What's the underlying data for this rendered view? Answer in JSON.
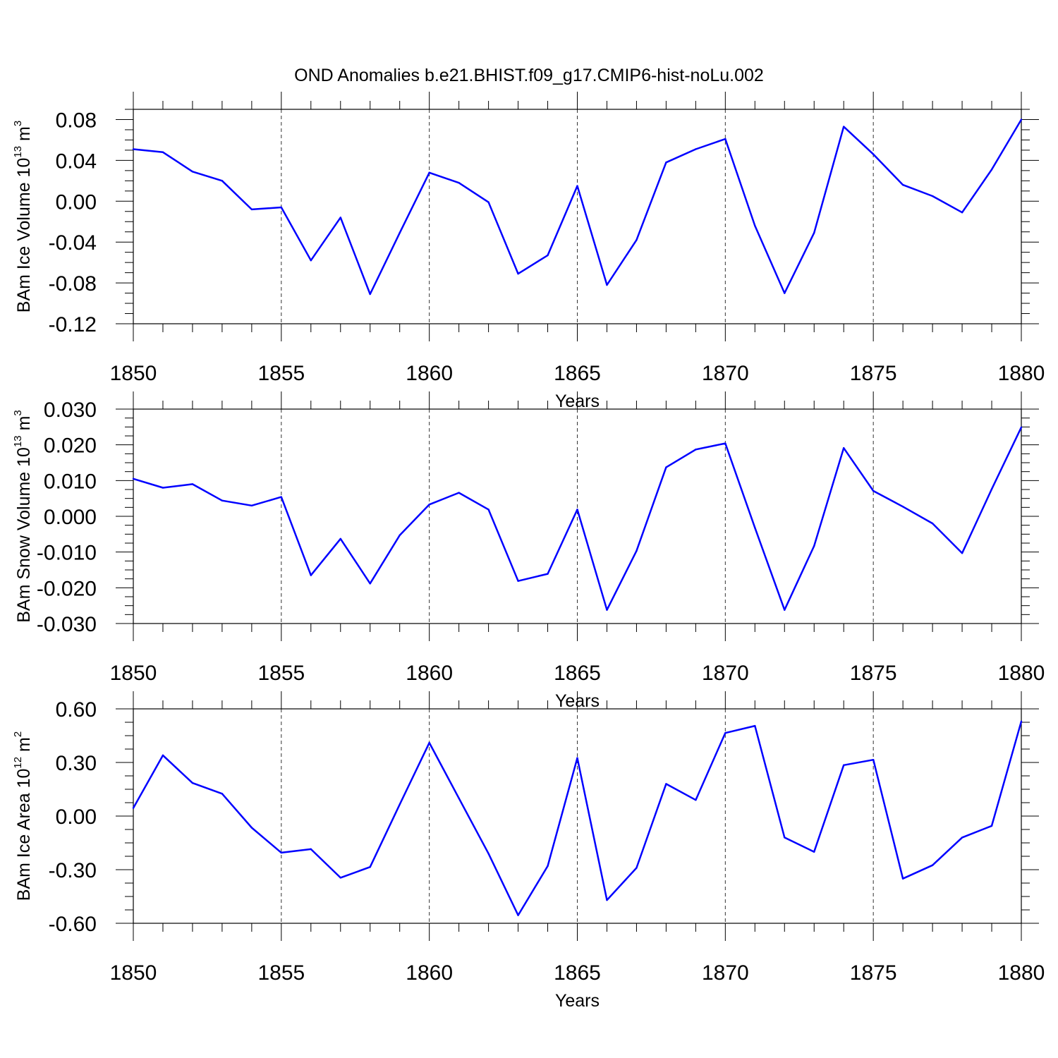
{
  "figure": {
    "title": "OND Anomalies b.e21.BHIST.f09_g17.CMIP6-hist-noLu.002"
  },
  "chart_data": [
    {
      "type": "line",
      "xlabel": "Years",
      "ylabel": {
        "main": "BAm Ice Volume 10",
        "exp": "13",
        "unit": " m",
        "unit_exp": "3"
      },
      "xlim": [
        1850,
        1880
      ],
      "ylim": [
        -0.12,
        0.09
      ],
      "x_ticks": [
        1850,
        1855,
        1860,
        1865,
        1870,
        1875,
        1880
      ],
      "y_ticks": [
        -0.12,
        -0.08,
        -0.04,
        0.0,
        0.04,
        0.08
      ],
      "y_tick_labels": [
        "-0.12",
        "-0.08",
        "-0.04",
        "0.00",
        "0.04",
        "0.08"
      ],
      "grid": "vertical dashed at major x ticks",
      "series": [
        {
          "color": "#0000ff",
          "x": [
            1850,
            1851,
            1852,
            1853,
            1854,
            1855,
            1856,
            1857,
            1858,
            1859,
            1860,
            1861,
            1862,
            1863,
            1864,
            1865,
            1866,
            1867,
            1868,
            1869,
            1870,
            1871,
            1872,
            1873,
            1874,
            1875,
            1876,
            1877,
            1878,
            1879,
            1880
          ],
          "values": [
            0.051,
            0.048,
            0.029,
            0.02,
            -0.008,
            -0.006,
            -0.058,
            -0.016,
            -0.091,
            -0.031,
            0.028,
            0.018,
            -0.001,
            -0.071,
            -0.053,
            0.015,
            -0.082,
            -0.038,
            0.038,
            0.051,
            0.061,
            -0.024,
            -0.09,
            -0.031,
            0.073,
            0.046,
            0.016,
            0.005,
            -0.011,
            0.031,
            0.08
          ]
        }
      ]
    },
    {
      "type": "line",
      "xlabel": "Years",
      "ylabel": {
        "main": "BAm Snow Volume 10",
        "exp": "13",
        "unit": " m",
        "unit_exp": "3"
      },
      "xlim": [
        1850,
        1880
      ],
      "ylim": [
        -0.03,
        0.03
      ],
      "x_ticks": [
        1850,
        1855,
        1860,
        1865,
        1870,
        1875,
        1880
      ],
      "y_ticks": [
        -0.03,
        -0.02,
        -0.01,
        0.0,
        0.01,
        0.02,
        0.03
      ],
      "y_tick_labels": [
        "-0.030",
        "-0.020",
        "-0.010",
        "0.000",
        "0.010",
        "0.020",
        "0.030"
      ],
      "grid": "vertical dashed at major x ticks",
      "series": [
        {
          "color": "#0000ff",
          "x": [
            1850,
            1851,
            1852,
            1853,
            1854,
            1855,
            1856,
            1857,
            1858,
            1859,
            1860,
            1861,
            1862,
            1863,
            1864,
            1865,
            1866,
            1867,
            1868,
            1869,
            1870,
            1871,
            1872,
            1873,
            1874,
            1875,
            1876,
            1877,
            1878,
            1879,
            1880
          ],
          "values": [
            0.0105,
            0.008,
            0.009,
            0.0044,
            0.003,
            0.0054,
            -0.0165,
            -0.0063,
            -0.0188,
            -0.0053,
            0.0033,
            0.0066,
            0.0019,
            -0.0181,
            -0.0161,
            0.0019,
            -0.0262,
            -0.0097,
            0.0137,
            0.0187,
            0.0204,
            -0.0032,
            -0.0262,
            -0.0083,
            0.0191,
            0.0071,
            0.0027,
            -0.002,
            -0.0103,
            0.0076,
            0.0249
          ]
        }
      ]
    },
    {
      "type": "line",
      "xlabel": "Years",
      "ylabel": {
        "main": "BAm Ice Area 10",
        "exp": "12",
        "unit": " m",
        "unit_exp": "2"
      },
      "xlim": [
        1850,
        1880
      ],
      "ylim": [
        -0.6,
        0.6
      ],
      "x_ticks": [
        1850,
        1855,
        1860,
        1865,
        1870,
        1875,
        1880
      ],
      "y_ticks": [
        -0.6,
        -0.3,
        0.0,
        0.3,
        0.6
      ],
      "y_tick_labels": [
        "-0.60",
        "-0.30",
        "0.00",
        "0.30",
        "0.60"
      ],
      "grid": "vertical dashed at major x ticks",
      "series": [
        {
          "color": "#0000ff",
          "x": [
            1850,
            1851,
            1852,
            1853,
            1854,
            1855,
            1856,
            1857,
            1858,
            1859,
            1860,
            1861,
            1862,
            1863,
            1864,
            1865,
            1866,
            1867,
            1868,
            1869,
            1870,
            1871,
            1872,
            1873,
            1874,
            1875,
            1876,
            1877,
            1878,
            1879,
            1880
          ],
          "values": [
            0.045,
            0.34,
            0.185,
            0.125,
            -0.065,
            -0.205,
            -0.185,
            -0.345,
            -0.285,
            0.065,
            0.41,
            0.1,
            -0.21,
            -0.555,
            -0.28,
            0.325,
            -0.47,
            -0.29,
            0.18,
            0.09,
            0.465,
            0.505,
            -0.12,
            -0.2,
            0.285,
            0.315,
            -0.35,
            -0.275,
            -0.12,
            -0.055,
            0.53
          ]
        }
      ]
    }
  ]
}
